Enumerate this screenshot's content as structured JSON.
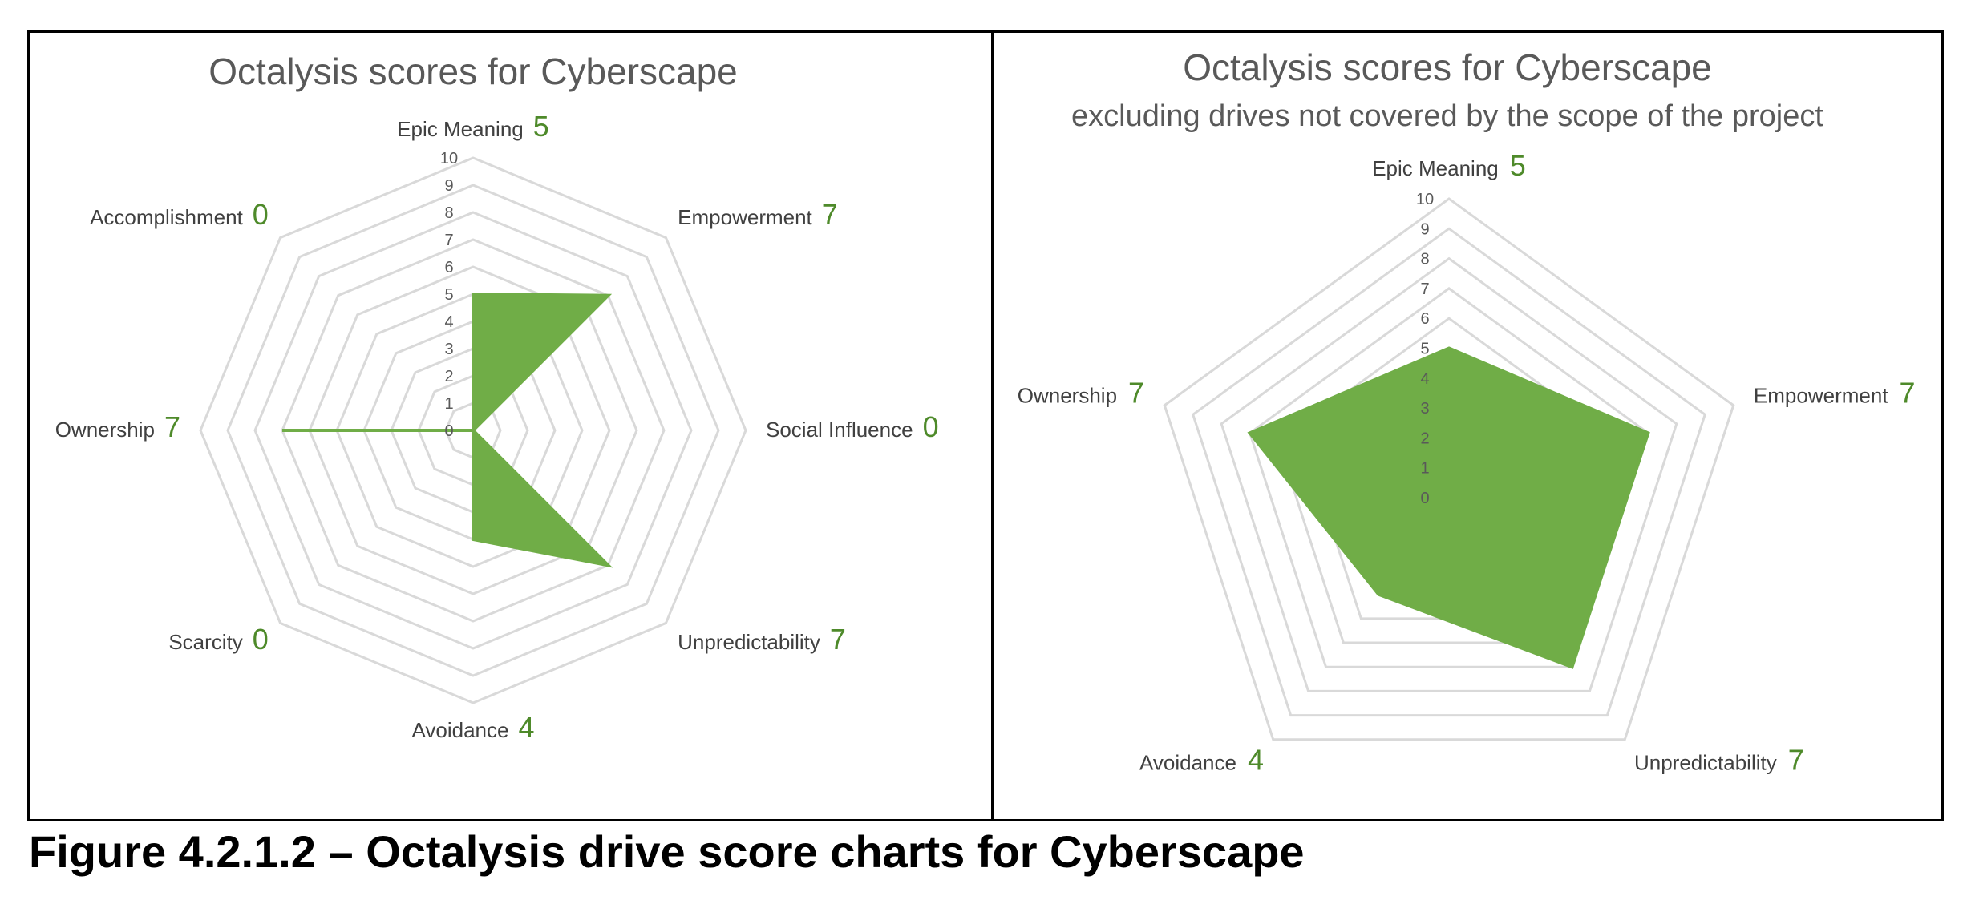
{
  "caption": "Figure 4.2.1.2 – Octalysis drive score charts for Cyberscape",
  "chart_data": [
    {
      "type": "radar",
      "title": "Octalysis scores for Cyberscape",
      "subtitle": "",
      "categories": [
        "Epic Meaning",
        "Empowerment",
        "Social Influence",
        "Unpredictability",
        "Avoidance",
        "Scarcity",
        "Ownership",
        "Accomplishment"
      ],
      "values": [
        5,
        7,
        0,
        7,
        4,
        0,
        7,
        0
      ],
      "ticks": [
        "0",
        "1",
        "2",
        "3",
        "4",
        "5",
        "6",
        "7",
        "8",
        "9",
        "10"
      ],
      "rlim": [
        0,
        10
      ],
      "series_color": "#70ad47",
      "grid_color": "#d9d9d9"
    },
    {
      "type": "radar",
      "title": "Octalysis scores for Cyberscape",
      "subtitle": "excluding drives not covered by the scope of the project",
      "categories": [
        "Epic Meaning",
        "Empowerment",
        "Unpredictability",
        "Avoidance",
        "Ownership"
      ],
      "values": [
        5,
        7,
        7,
        4,
        7
      ],
      "ticks": [
        "0",
        "1",
        "2",
        "3",
        "4",
        "5",
        "6",
        "7",
        "8",
        "9",
        "10"
      ],
      "rlim": [
        0,
        10
      ],
      "series_color": "#70ad47",
      "grid_color": "#d9d9d9"
    }
  ]
}
